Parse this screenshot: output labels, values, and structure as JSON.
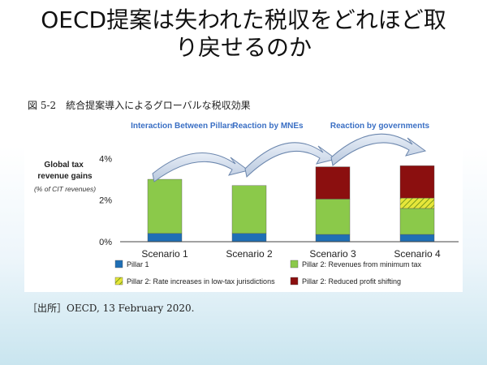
{
  "slide": {
    "title_line1": "OECD提案は失われた税収をどれほど取",
    "title_line2": "り戻せるのか",
    "figure_caption": "図 5-2　統合提案導入によるグローバルな税収効果",
    "source": "［出所］OECD, 13 February 2020."
  },
  "chart_data": {
    "type": "bar",
    "stacked": true,
    "ylabel": "Global tax revenue gains",
    "ylabel_sub": "(% of CIT revenues)",
    "ylim": [
      0,
      4.6
    ],
    "yticks": [
      0,
      2,
      4
    ],
    "ytick_labels": [
      "0%",
      "2%",
      "4%"
    ],
    "categories": [
      "Scenario 1",
      "Scenario 2",
      "Scenario 3",
      "Scenario 4"
    ],
    "series": [
      {
        "name": "Pillar 1",
        "color": "#1f6fb5",
        "values": [
          0.4,
          0.4,
          0.35,
          0.35
        ]
      },
      {
        "name": "Pillar 2: Revenues from minimum tax",
        "color": "#8bc94a",
        "values": [
          2.6,
          2.3,
          1.7,
          1.25
        ]
      },
      {
        "name": "Pillar 2: Rate increases in low-tax jurisdictions",
        "color": "#e6e63a",
        "pattern": "hatch",
        "values": [
          0,
          0,
          0,
          0.5
        ]
      },
      {
        "name": "Pillar 2: Reduced profit shifting",
        "color": "#8b0f0f",
        "values": [
          0,
          0,
          1.55,
          1.55
        ]
      }
    ],
    "annotations": [
      {
        "text": "Interaction Between Pillars",
        "from": 0,
        "to": 1
      },
      {
        "text": "Reaction by MNEs",
        "from": 1,
        "to": 2
      },
      {
        "text": "Reaction by governments",
        "from": 2,
        "to": 3
      }
    ],
    "annotation_color": "#3a6fc4",
    "grid": false,
    "legend_position": "bottom"
  }
}
